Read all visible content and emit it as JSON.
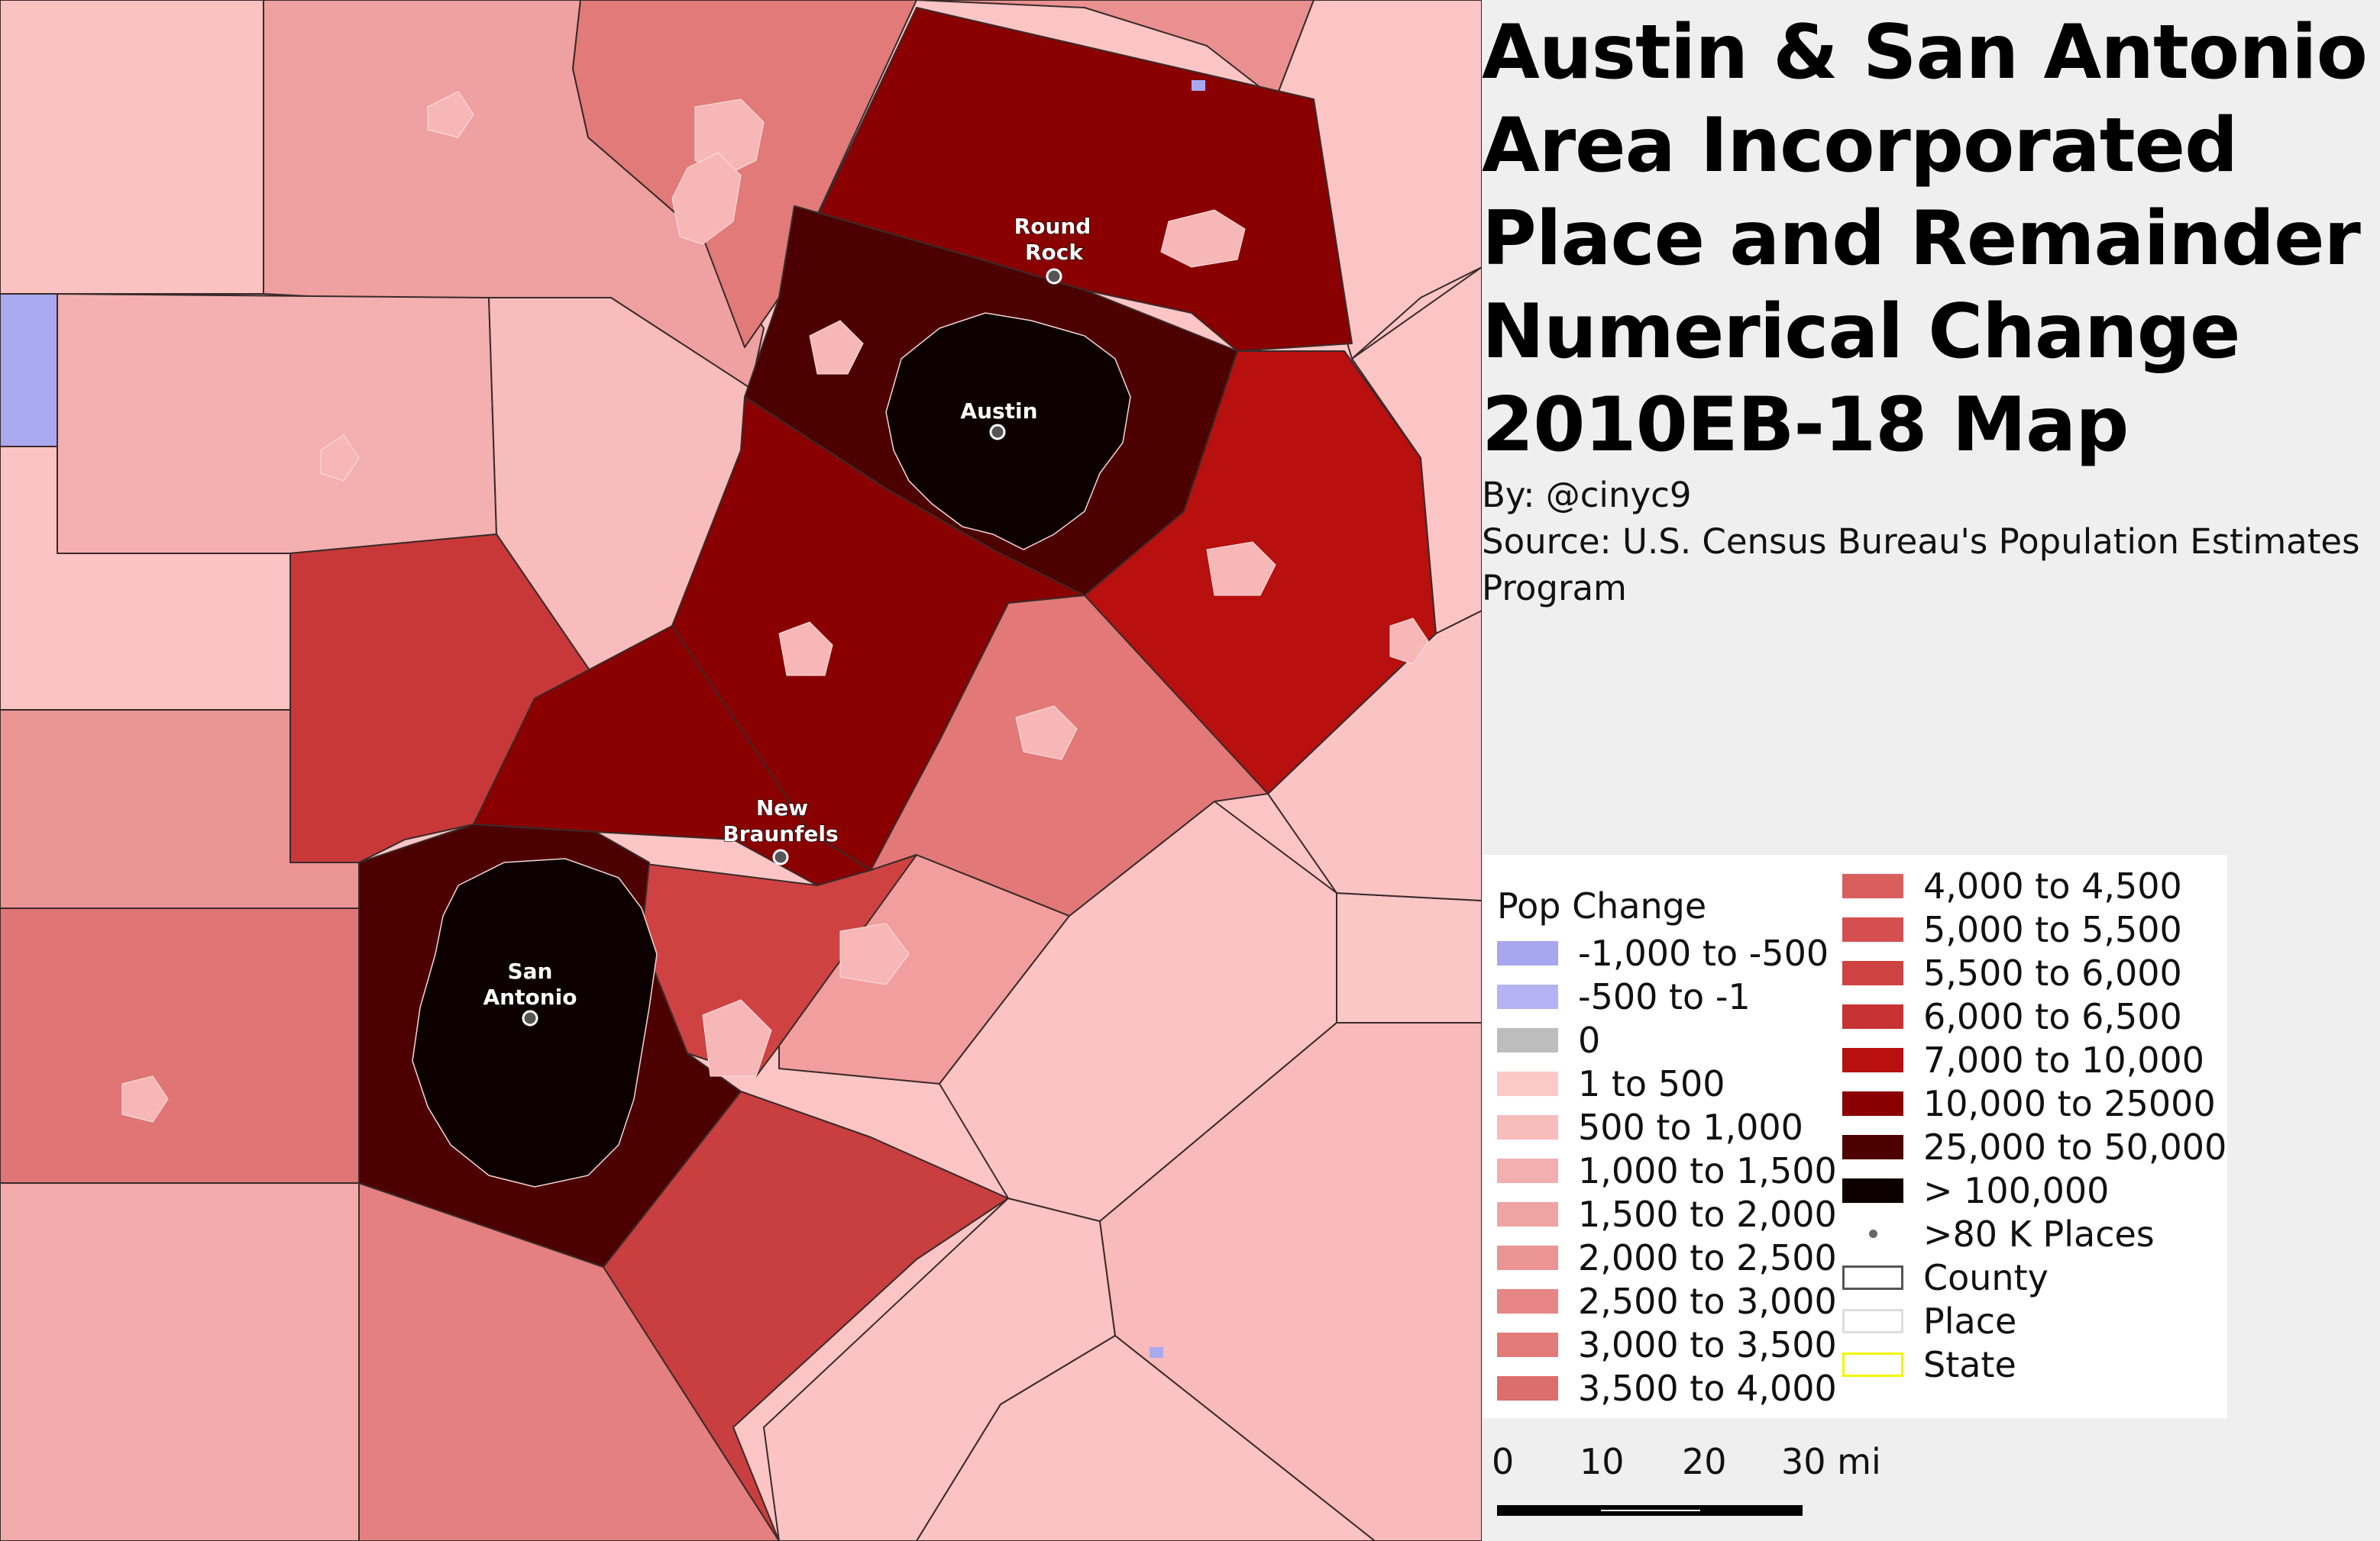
{
  "title_lines": [
    "Austin & San Antonio",
    "Area Incorporated",
    "Place and Remainder",
    "Numerical Change",
    "2010EB-18 Map"
  ],
  "credits": {
    "by": "By: @cinyc9",
    "source_line1": "Source: U.S. Census Bureau's Population Estimates",
    "source_line2": "Program"
  },
  "cities": {
    "round_rock": [
      "Round",
      "Rock"
    ],
    "austin": "Austin",
    "new_braunfels": [
      "New",
      "Braunfels"
    ],
    "san_antonio": [
      "San",
      "Antonio"
    ]
  },
  "legend": {
    "title": "Pop Change",
    "col1": [
      {
        "label": "-1,000 to -500",
        "color": "#a7a7ee"
      },
      {
        "label": "-500 to -1",
        "color": "#b4b4f4"
      },
      {
        "label": "0",
        "color": "#bdbdbd"
      },
      {
        "label": "1 to 500",
        "color": "#fcc9c9"
      },
      {
        "label": "500 to 1,000",
        "color": "#f8bcbc"
      },
      {
        "label": "1,000 to 1,500",
        "color": "#f3aeae"
      },
      {
        "label": "1,500 to 2,000",
        "color": "#efa3a3"
      },
      {
        "label": "2,000 to 2,500",
        "color": "#ea9494"
      },
      {
        "label": "2,500 to 3,000",
        "color": "#e68686"
      },
      {
        "label": "3,000 to 3,500",
        "color": "#e27a7a"
      },
      {
        "label": "3,500 to 4,000",
        "color": "#dd6e6e"
      }
    ],
    "col2": [
      {
        "label": "4,000 to 4,500",
        "color": "#d95f5f"
      },
      {
        "label": "5,000 to 5,500",
        "color": "#d44f4f"
      },
      {
        "label": "5,500 to 6,000",
        "color": "#cf4242"
      },
      {
        "label": "6,000 to 6,500",
        "color": "#c73333"
      },
      {
        "label": "7,000 to 10,000",
        "color": "#b80f0f"
      },
      {
        "label": "10,000 to 25000",
        "color": "#8a0000"
      },
      {
        "label": "25,000 to 50,000",
        "color": "#4d0000"
      },
      {
        "label": "> 100,000",
        "color": "#0d0000"
      },
      {
        "label": ">80 K Places",
        "symbol": "dot"
      },
      {
        "label": "County",
        "symbol": "outline",
        "color": "#555555"
      },
      {
        "label": "Place",
        "symbol": "outline",
        "color": "#dddddd"
      },
      {
        "label": "State",
        "symbol": "outline",
        "color": "#f5f500"
      }
    ]
  },
  "scale": {
    "ticks": [
      "0",
      "10",
      "20",
      "30 mi"
    ]
  }
}
